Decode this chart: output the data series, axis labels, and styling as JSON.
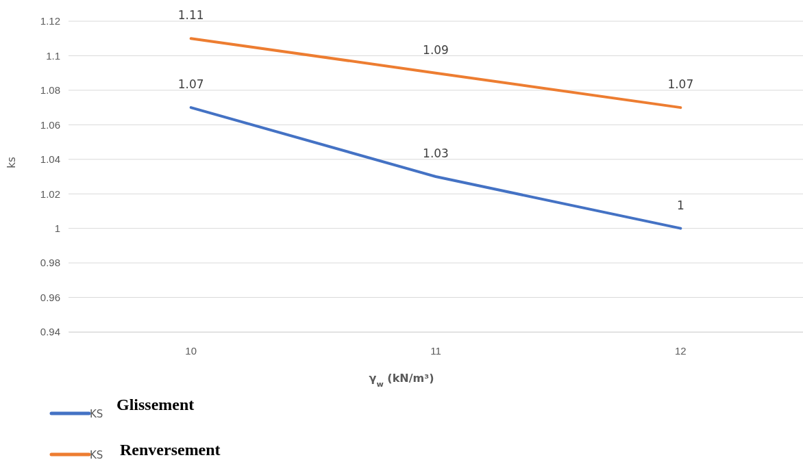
{
  "chart_data": {
    "type": "line",
    "ylabel": "ks",
    "xlabel": "γ$_{w}$  (kN/m³)",
    "categories": [
      "10",
      "11",
      "12"
    ],
    "series": [
      {
        "name": "KS",
        "color": "#4472c4",
        "values": [
          1.07,
          1.03,
          1
        ]
      },
      {
        "name": "KS",
        "color": "#ed7d31",
        "values": [
          1.11,
          1.09,
          1.07
        ]
      }
    ],
    "annotations": [
      "Glissement",
      "Renversement"
    ],
    "ylim": [
      0.94,
      1.12
    ],
    "yticks": [
      {
        "value": 0.94,
        "label": "0.94"
      },
      {
        "value": 0.96,
        "label": "0.96"
      },
      {
        "value": 0.98,
        "label": "0.98"
      },
      1,
      {
        "value": 1.02,
        "label": "1.02"
      },
      {
        "value": 1.04,
        "label": "1.04"
      },
      {
        "value": 1.06,
        "label": "1.06"
      },
      {
        "value": 1.08,
        "label": "1.08"
      },
      {
        "value": 1.1,
        "label": "1.1"
      },
      {
        "value": 1.12,
        "label": "1.12"
      }
    ],
    "grid": "y",
    "legend": "bottom left",
    "data_labels": true,
    "marker": "none",
    "line_style": "solid"
  }
}
